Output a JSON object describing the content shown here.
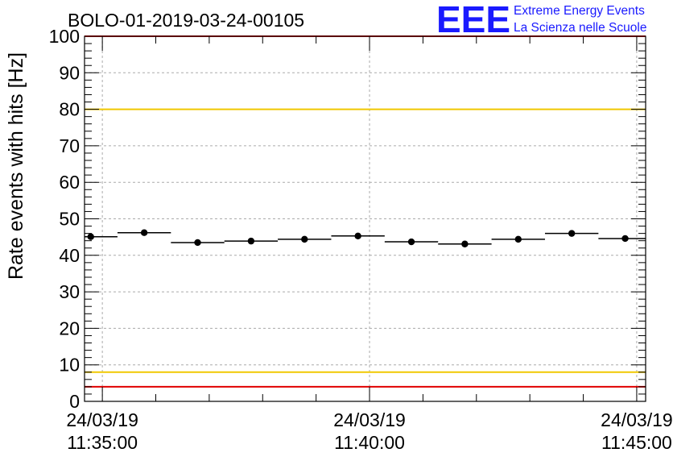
{
  "chart_data": {
    "type": "scatter",
    "title": "BOLO-01-2019-03-24-00105",
    "ylabel": "Rate events with hits [Hz]",
    "xlabel": "",
    "ylim": [
      0,
      100
    ],
    "grid": true,
    "yticks": [
      0,
      10,
      20,
      30,
      40,
      50,
      60,
      70,
      80,
      90,
      100
    ],
    "xticks": [
      {
        "x": "2019-03-24 11:35:00",
        "date": "24/03/19",
        "time": "11:35:00"
      },
      {
        "x": "2019-03-24 11:40:00",
        "date": "24/03/19",
        "time": "11:40:00"
      },
      {
        "x": "2019-03-24 11:45:00",
        "date": "24/03/19",
        "time": "11:45:00"
      }
    ],
    "xlim": [
      "2019-03-24 11:34:40",
      "2019-03-24 11:45:10"
    ],
    "x": [
      "2019-03-24 11:34:47",
      "2019-03-24 11:35:47",
      "2019-03-24 11:36:47",
      "2019-03-24 11:37:47",
      "2019-03-24 11:38:47",
      "2019-03-24 11:39:47",
      "2019-03-24 11:40:47",
      "2019-03-24 11:41:47",
      "2019-03-24 11:42:47",
      "2019-03-24 11:43:47",
      "2019-03-24 11:44:47"
    ],
    "values": [
      45.1,
      46.2,
      43.5,
      43.9,
      44.4,
      45.3,
      43.7,
      43.1,
      44.4,
      46.0,
      44.6
    ],
    "bin_width_seconds": 60,
    "reference_lines": [
      {
        "y": 80,
        "color": "#f0c800"
      },
      {
        "y": 8,
        "color": "#f0c800"
      },
      {
        "y": 100,
        "color": "#e00000"
      },
      {
        "y": 4,
        "color": "#e00000"
      }
    ]
  },
  "logo": {
    "mark": "EEE",
    "line1": "Extreme Energy Events",
    "line2": "La Scienza nelle Scuole",
    "color": "#1a1aff"
  }
}
